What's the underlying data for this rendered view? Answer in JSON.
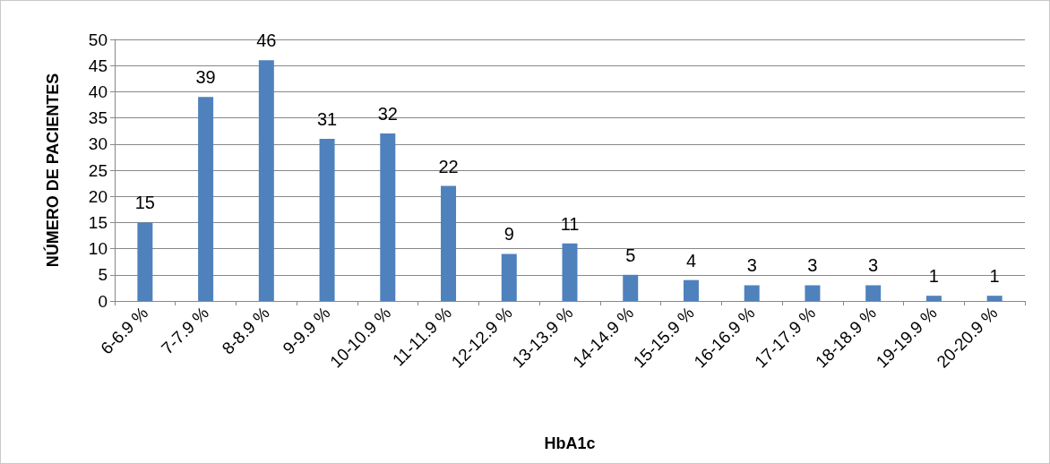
{
  "chart_data": {
    "type": "bar",
    "xlabel": "HbA1c",
    "ylabel": "NÚMERO DE PACIENTES",
    "categories": [
      "6-6.9 %",
      "7-7.9 %",
      "8-8.9 %",
      "9-9.9 %",
      "10-10.9 %",
      "11-11.9 %",
      "12-12.9 %",
      "13-13.9 %",
      "14-14.9 %",
      "15-15.9 %",
      "16-16.9 %",
      "17-17.9 %",
      "18-18.9 %",
      "19-19.9 %",
      "20-20.9 %"
    ],
    "values": [
      15,
      39,
      46,
      31,
      32,
      22,
      9,
      11,
      5,
      4,
      3,
      3,
      3,
      1,
      1
    ],
    "color": "#4f81bd",
    "ylim": [
      0,
      50
    ],
    "yticks": [
      0,
      5,
      10,
      15,
      20,
      25,
      30,
      35,
      40,
      45,
      50
    ],
    "grid": "y",
    "data_labels": true
  }
}
